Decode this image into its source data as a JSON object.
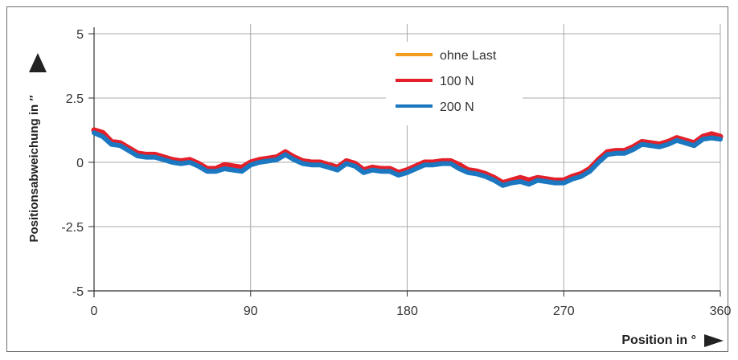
{
  "chart_data": {
    "type": "line",
    "xlabel": "Position in °",
    "ylabel": "Positionsabweichung in ″",
    "xlim": [
      0,
      360
    ],
    "ylim": [
      -5,
      5
    ],
    "x_ticks": [
      0,
      90,
      180,
      270,
      360
    ],
    "y_ticks": [
      5,
      2.5,
      0,
      -2.5,
      -5
    ],
    "y_tick_labels": [
      "5",
      "2.5",
      "0",
      "-2.5",
      "-5"
    ],
    "grid": true,
    "legend_position": "top-center",
    "series": [
      {
        "name": "ohne Last",
        "color": "#f39c1f",
        "x": [
          0,
          5,
          10,
          15,
          20,
          25,
          30,
          35,
          40,
          45,
          50,
          55,
          60,
          65,
          70,
          75,
          80,
          85,
          90,
          95,
          100,
          105,
          110,
          115,
          120,
          125,
          130,
          135,
          140,
          145,
          150,
          155,
          160,
          165,
          170,
          175,
          180,
          185,
          190,
          195,
          200,
          205,
          210,
          215,
          220,
          225,
          230,
          235,
          240,
          245,
          250,
          255,
          260,
          265,
          270,
          275,
          280,
          285,
          290,
          295,
          300,
          305,
          310,
          315,
          320,
          325,
          330,
          335,
          340,
          345,
          350,
          355,
          360
        ],
        "y": [
          1.2,
          1.05,
          0.75,
          0.7,
          0.5,
          0.3,
          0.25,
          0.25,
          0.15,
          0.05,
          0.0,
          0.05,
          -0.1,
          -0.3,
          -0.3,
          -0.2,
          -0.25,
          -0.3,
          -0.05,
          0.05,
          0.1,
          0.15,
          0.35,
          0.15,
          0.0,
          -0.05,
          -0.05,
          -0.15,
          -0.25,
          0.0,
          -0.1,
          -0.35,
          -0.25,
          -0.3,
          -0.3,
          -0.45,
          -0.35,
          -0.2,
          -0.05,
          -0.05,
          0.0,
          0.0,
          -0.2,
          -0.35,
          -0.4,
          -0.5,
          -0.65,
          -0.85,
          -0.75,
          -0.7,
          -0.8,
          -0.65,
          -0.7,
          -0.75,
          -0.75,
          -0.6,
          -0.5,
          -0.3,
          0.05,
          0.35,
          0.4,
          0.4,
          0.55,
          0.75,
          0.7,
          0.65,
          0.75,
          0.9,
          0.8,
          0.7,
          0.95,
          1.0,
          0.95
        ]
      },
      {
        "name": "100 N",
        "color": "#e3202a",
        "x": [
          0,
          5,
          10,
          15,
          20,
          25,
          30,
          35,
          40,
          45,
          50,
          55,
          60,
          65,
          70,
          75,
          80,
          85,
          90,
          95,
          100,
          105,
          110,
          115,
          120,
          125,
          130,
          135,
          140,
          145,
          150,
          155,
          160,
          165,
          170,
          175,
          180,
          185,
          190,
          195,
          200,
          205,
          210,
          215,
          220,
          225,
          230,
          235,
          240,
          245,
          250,
          255,
          260,
          265,
          270,
          275,
          280,
          285,
          290,
          295,
          300,
          305,
          310,
          315,
          320,
          325,
          330,
          335,
          340,
          345,
          350,
          355,
          360
        ],
        "y": [
          1.25,
          1.15,
          0.8,
          0.75,
          0.55,
          0.35,
          0.3,
          0.3,
          0.2,
          0.1,
          0.05,
          0.1,
          -0.05,
          -0.25,
          -0.25,
          -0.1,
          -0.15,
          -0.2,
          0.0,
          0.1,
          0.15,
          0.2,
          0.4,
          0.2,
          0.05,
          0.0,
          0.0,
          -0.1,
          -0.2,
          0.05,
          -0.05,
          -0.3,
          -0.2,
          -0.25,
          -0.25,
          -0.4,
          -0.3,
          -0.15,
          0.0,
          0.0,
          0.05,
          0.05,
          -0.1,
          -0.3,
          -0.35,
          -0.45,
          -0.6,
          -0.8,
          -0.7,
          -0.6,
          -0.7,
          -0.6,
          -0.65,
          -0.7,
          -0.7,
          -0.55,
          -0.45,
          -0.25,
          0.1,
          0.4,
          0.45,
          0.45,
          0.6,
          0.8,
          0.75,
          0.7,
          0.8,
          0.95,
          0.85,
          0.75,
          1.0,
          1.1,
          1.0
        ]
      },
      {
        "name": "200 N",
        "color": "#1a77c0",
        "x": [
          0,
          5,
          10,
          15,
          20,
          25,
          30,
          35,
          40,
          45,
          50,
          55,
          60,
          65,
          70,
          75,
          80,
          85,
          90,
          95,
          100,
          105,
          110,
          115,
          120,
          125,
          130,
          135,
          140,
          145,
          150,
          155,
          160,
          165,
          170,
          175,
          180,
          185,
          190,
          195,
          200,
          205,
          210,
          215,
          220,
          225,
          230,
          235,
          240,
          245,
          250,
          255,
          260,
          265,
          270,
          275,
          280,
          285,
          290,
          295,
          300,
          305,
          310,
          315,
          320,
          325,
          330,
          335,
          340,
          345,
          350,
          355,
          360
        ],
        "y": [
          1.15,
          1.0,
          0.7,
          0.65,
          0.45,
          0.25,
          0.2,
          0.2,
          0.1,
          0.0,
          -0.05,
          0.0,
          -0.15,
          -0.35,
          -0.35,
          -0.25,
          -0.3,
          -0.35,
          -0.1,
          0.0,
          0.05,
          0.1,
          0.3,
          0.1,
          -0.05,
          -0.1,
          -0.1,
          -0.2,
          -0.3,
          -0.05,
          -0.15,
          -0.4,
          -0.3,
          -0.35,
          -0.35,
          -0.5,
          -0.4,
          -0.25,
          -0.1,
          -0.1,
          -0.05,
          -0.05,
          -0.25,
          -0.4,
          -0.45,
          -0.55,
          -0.7,
          -0.9,
          -0.8,
          -0.75,
          -0.85,
          -0.7,
          -0.75,
          -0.8,
          -0.8,
          -0.65,
          -0.55,
          -0.35,
          0.0,
          0.3,
          0.35,
          0.35,
          0.5,
          0.7,
          0.65,
          0.6,
          0.7,
          0.85,
          0.75,
          0.65,
          0.9,
          0.95,
          0.9
        ]
      }
    ]
  }
}
